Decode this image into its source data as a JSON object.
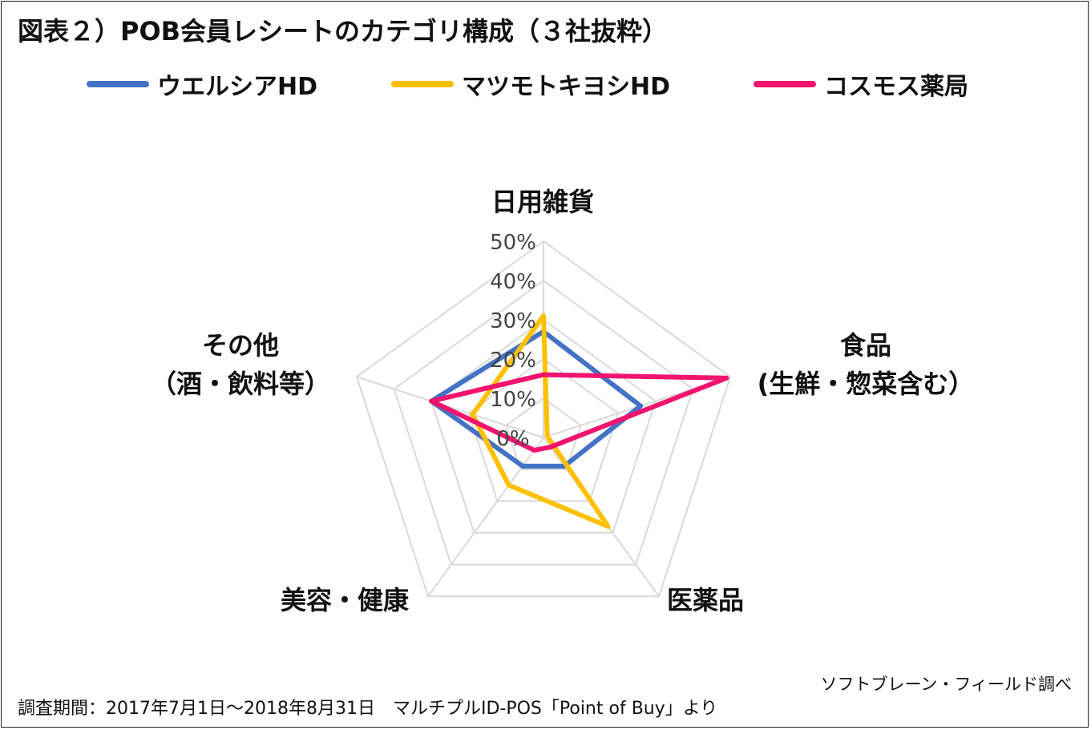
{
  "title": "図表２）POB会員レシートのカテゴリ構成（３社抜粋）",
  "source_note": "ソフトブレーン・フィールド調べ",
  "period_note": "調査期間：2017年7月1日～2018年8月31日　マルチプルID-POS「Point of Buy」より",
  "chart_data": {
    "type": "radar",
    "title": "図表２）POB会員レシートのカテゴリ構成（３社抜粋）",
    "axes": [
      {
        "label": "日用雑貨",
        "label2": ""
      },
      {
        "label": "食品",
        "label2": "(生鮮・惣菜含む）"
      },
      {
        "label": "医薬品",
        "label2": ""
      },
      {
        "label": "美容・健康",
        "label2": ""
      },
      {
        "label": "その他",
        "label2": "（酒・飲料等）"
      }
    ],
    "range": [
      0,
      50
    ],
    "ticks": [
      "0%",
      "10%",
      "20%",
      "30%",
      "40%",
      "50%"
    ],
    "tick_values": [
      0,
      10,
      20,
      30,
      40,
      50
    ],
    "legend_position": "top",
    "series": [
      {
        "name": "ウエルシアHD",
        "color": "#4472C4",
        "values": [
          27,
          26,
          9,
          9,
          30
        ]
      },
      {
        "name": "マツモトキヨシHD",
        "color": "#FFC000",
        "values": [
          31,
          1,
          28,
          15,
          19
        ]
      },
      {
        "name": "コスモス薬局",
        "color": "#F0146E",
        "values": [
          16,
          49,
          3,
          4,
          30
        ]
      }
    ]
  }
}
